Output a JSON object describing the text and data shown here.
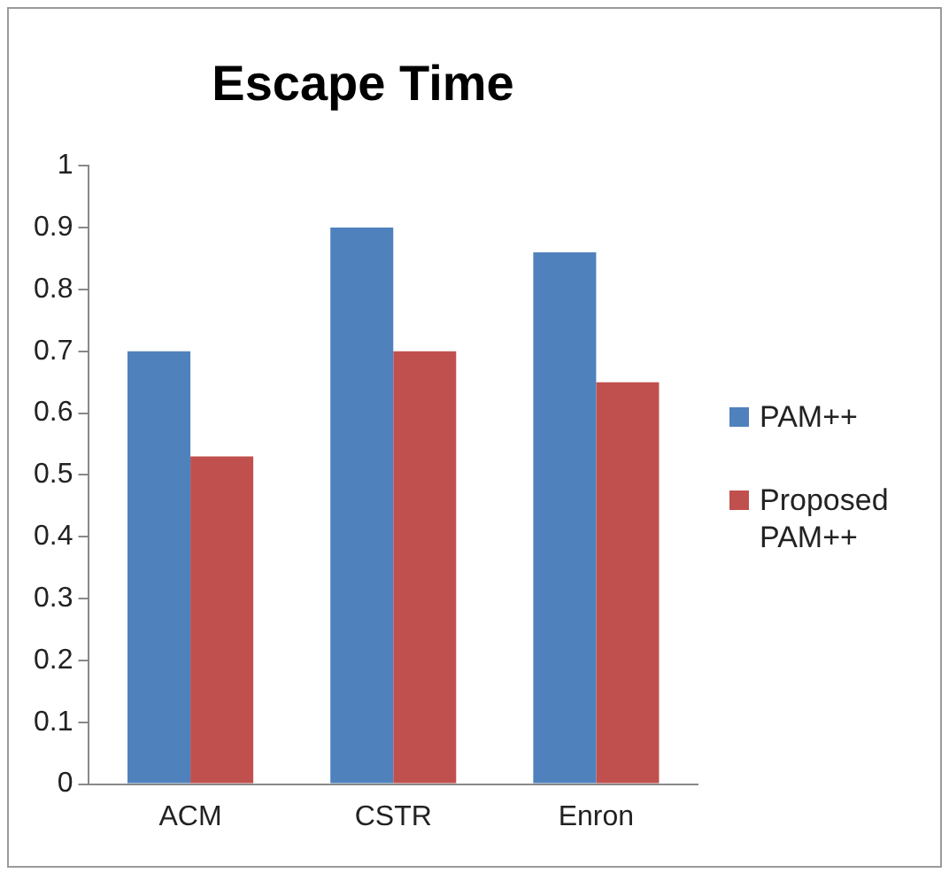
{
  "chart_data": {
    "type": "bar",
    "title": "Escape Time",
    "categories": [
      "ACM",
      "CSTR",
      "Enron"
    ],
    "series": [
      {
        "name": "PAM++",
        "color": "#4f81bd",
        "values": [
          0.7,
          0.9,
          0.86
        ]
      },
      {
        "name": "Proposed PAM++",
        "color": "#c0504d",
        "values": [
          0.53,
          0.7,
          0.65
        ]
      }
    ],
    "ylim": [
      0,
      1
    ],
    "yticks": [
      0,
      0.1,
      0.2,
      0.3,
      0.4,
      0.5,
      0.6,
      0.7,
      0.8,
      0.9,
      1
    ],
    "grid": false,
    "legend": "right"
  }
}
